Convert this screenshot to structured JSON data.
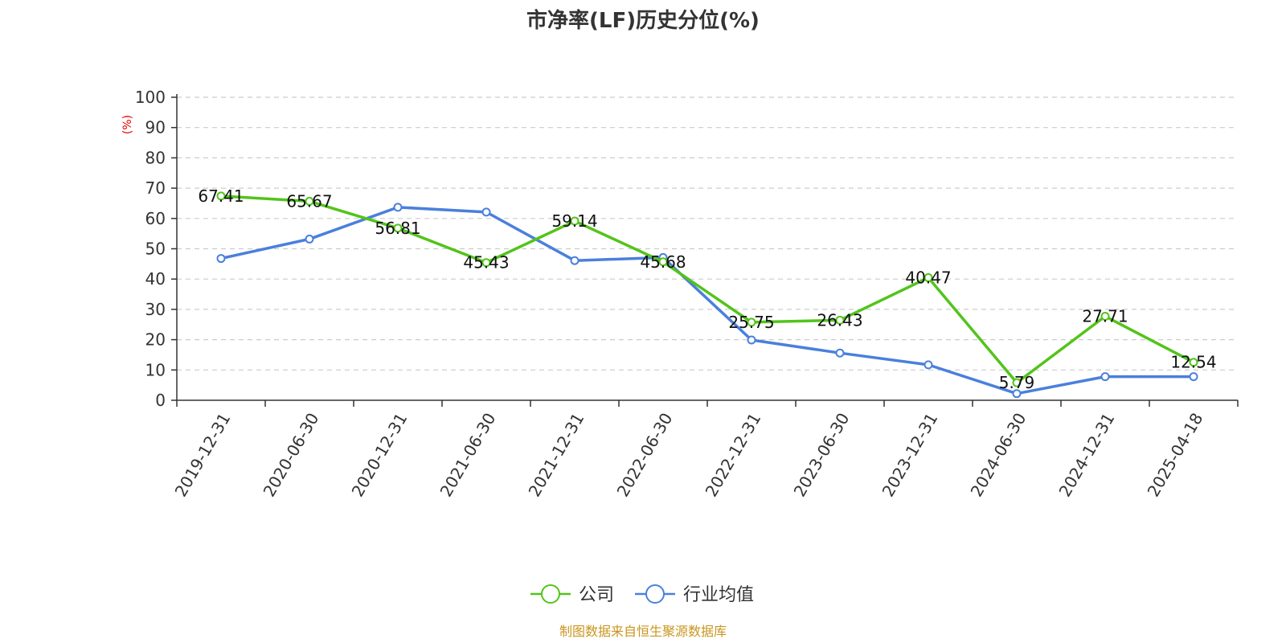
{
  "chart_data": {
    "type": "line",
    "title": "市净率(LF)历史分位(%)",
    "ylabel": "(%)",
    "ylim": [
      0,
      100
    ],
    "yticks": [
      0,
      10,
      20,
      30,
      40,
      50,
      60,
      70,
      80,
      90,
      100
    ],
    "grid": true,
    "legend_position": "bottom",
    "categories": [
      "2019-12-31",
      "2020-06-30",
      "2020-12-31",
      "2021-06-30",
      "2021-12-31",
      "2022-06-30",
      "2022-12-31",
      "2023-06-30",
      "2023-12-31",
      "2024-06-30",
      "2024-12-31",
      "2025-04-18"
    ],
    "series": [
      {
        "name": "公司",
        "color": "#52c41a",
        "values": [
          67.41,
          65.67,
          56.81,
          45.43,
          59.14,
          45.68,
          25.75,
          26.43,
          40.47,
          5.79,
          27.71,
          12.54
        ],
        "labels": [
          "67.41",
          "65.67",
          "56.81",
          "45.43",
          "59.14",
          "45.68",
          "25.75",
          "26.43",
          "40.47",
          "5.79",
          "27.71",
          "12.54"
        ]
      },
      {
        "name": "行业均值",
        "color": "#4a80dc",
        "values": [
          46.8,
          53.2,
          63.7,
          62.1,
          46.1,
          47.1,
          19.9,
          15.6,
          11.7,
          2.2,
          7.8,
          7.8
        ]
      }
    ],
    "source": "制图数据来自恒生聚源数据库"
  }
}
